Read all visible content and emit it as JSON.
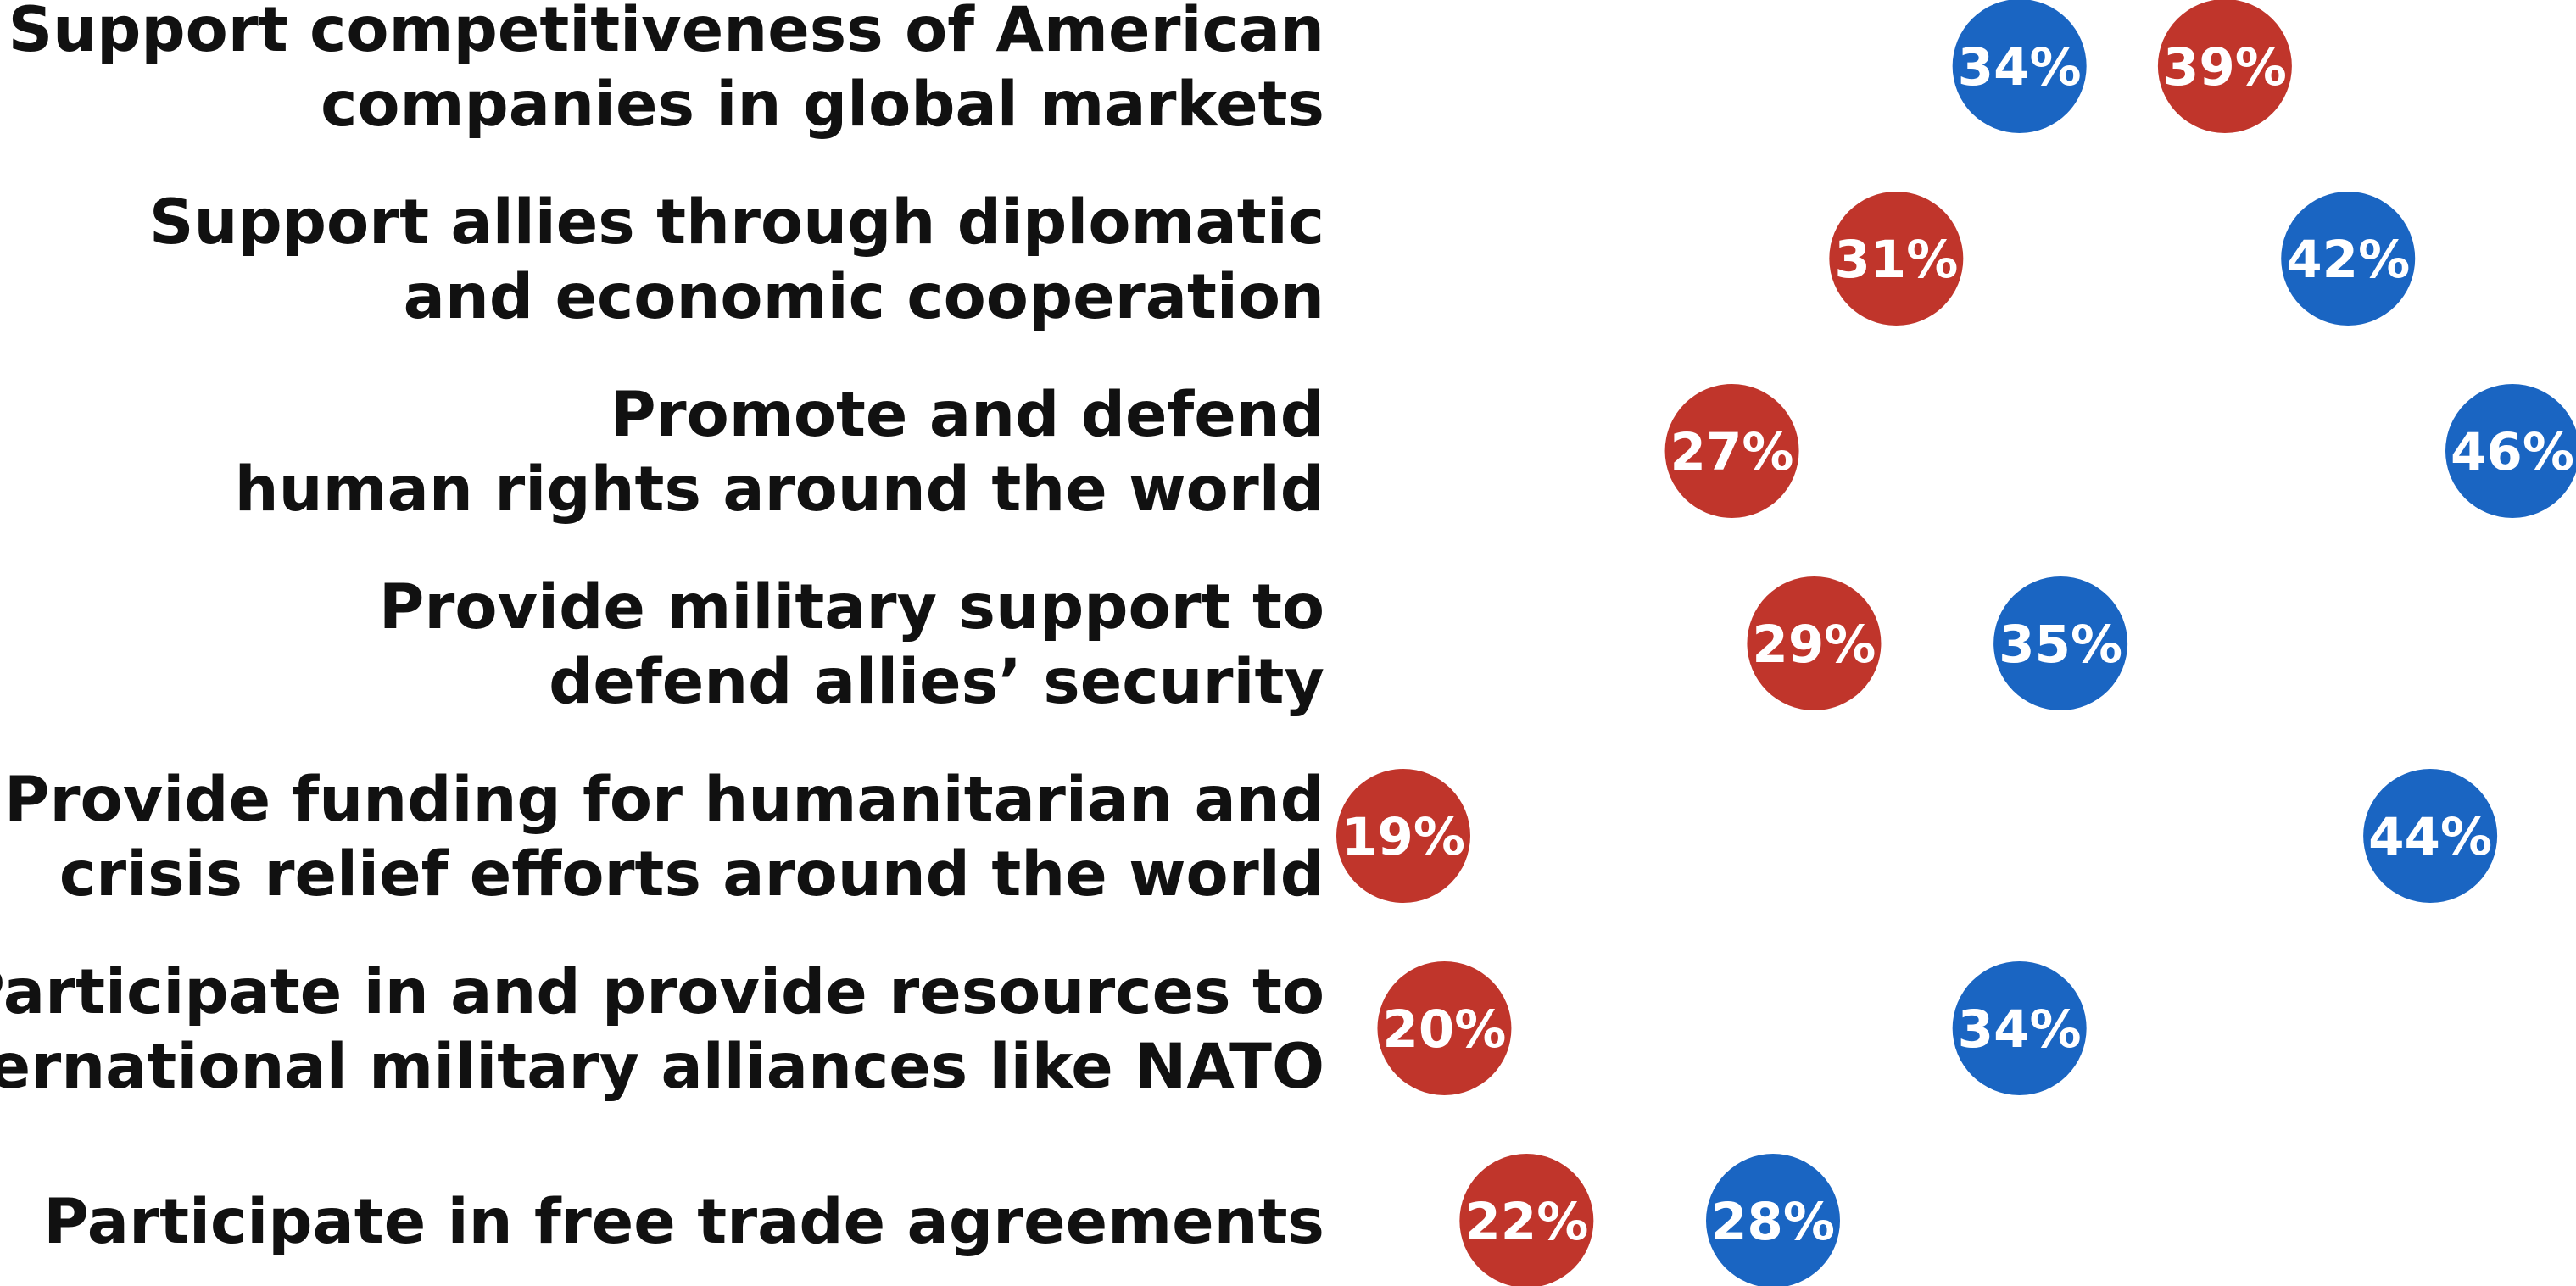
{
  "chart_data": {
    "type": "scatter",
    "categories": [
      [
        "Support competitiveness of American",
        "companies in global markets"
      ],
      [
        "Support allies through diplomatic",
        "and economic cooperation"
      ],
      [
        "Promote and defend",
        "human rights around the world"
      ],
      [
        "Provide military support to",
        "defend allies’ security"
      ],
      [
        "Provide funding for humanitarian and",
        "crisis relief efforts around the world"
      ],
      [
        "Participate in and provide resources to",
        "international military alliances like NATO"
      ],
      [
        "Participate in free trade agreements"
      ]
    ],
    "series": [
      {
        "color": "#c0352b",
        "values": [
          39,
          31,
          27,
          29,
          19,
          20,
          22
        ],
        "labels": [
          "39%",
          "31%",
          "27%",
          "29%",
          "19%",
          "20%",
          "22%"
        ]
      },
      {
        "color": "#1a65c2",
        "values": [
          34,
          42,
          46,
          35,
          44,
          34,
          28
        ],
        "labels": [
          "34%",
          "42%",
          "46%",
          "35%",
          "44%",
          "34%",
          "28%"
        ]
      }
    ],
    "xlim": [
      19,
      46
    ]
  }
}
